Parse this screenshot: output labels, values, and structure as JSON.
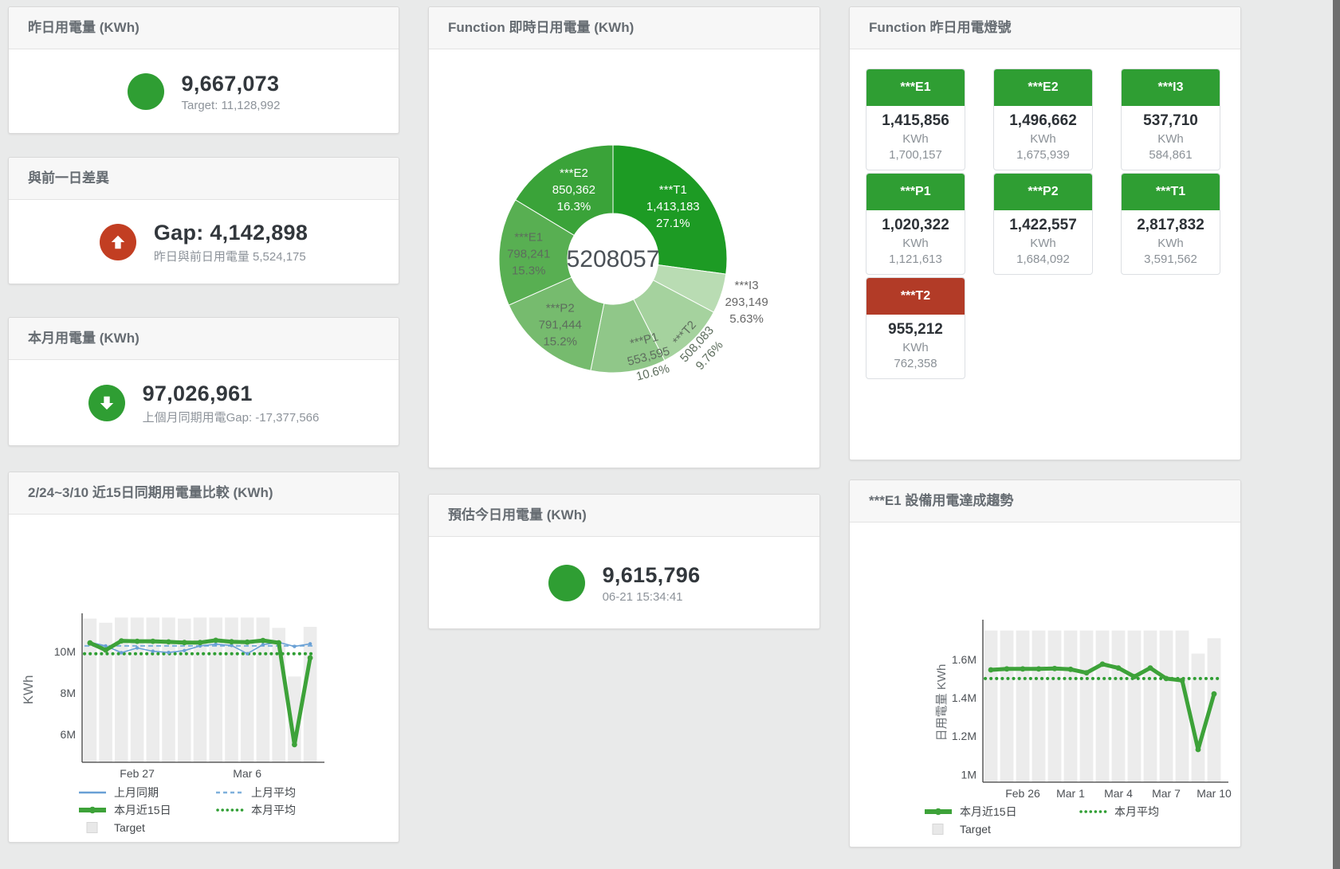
{
  "cards": {
    "yesterday": {
      "title": "昨日用電量 (KWh)",
      "value": "9,667,073",
      "subtitle": "Target: 11,128,992",
      "indicator": "circle-icon",
      "color": "#2f9e33"
    },
    "diff": {
      "title": "與前一日差異",
      "value": "Gap: 4,142,898",
      "subtitle": "昨日與前日用電量 5,524,175",
      "indicator": "arrow-up-icon",
      "color": "#c23e22"
    },
    "month": {
      "title": "本月用電量 (KWh)",
      "value": "97,026,961",
      "subtitle": "上個月同期用電Gap: -17,377,566",
      "indicator": "arrow-down-icon",
      "color": "#2f9e33"
    },
    "estimate": {
      "title": "預估今日用電量 (KWh)",
      "value": "9,615,796",
      "subtitle": "06-21 15:34:41",
      "indicator": "circle-icon",
      "color": "#2f9e33"
    },
    "lamp": {
      "title": "Function 昨日用電燈號",
      "unit": "KWh",
      "status_colors": {
        "green": "#2f9e33",
        "red": "#b23b27"
      },
      "tiles": [
        {
          "id": "e1",
          "label": "***E1",
          "value": "1,415,856",
          "target": "1,700,157",
          "color": "#2f9e33"
        },
        {
          "id": "e2",
          "label": "***E2",
          "value": "1,496,662",
          "target": "1,675,939",
          "color": "#2f9e33"
        },
        {
          "id": "i3",
          "label": "***I3",
          "value": "537,710",
          "target": "584,861",
          "color": "#2f9e33"
        },
        {
          "id": "p1",
          "label": "***P1",
          "value": "1,020,322",
          "target": "1,121,613",
          "color": "#2f9e33"
        },
        {
          "id": "p2",
          "label": "***P2",
          "value": "1,422,557",
          "target": "1,684,092",
          "color": "#2f9e33"
        },
        {
          "id": "t1",
          "label": "***T1",
          "value": "2,817,832",
          "target": "3,591,562",
          "color": "#2f9e33"
        },
        {
          "id": "t2",
          "label": "***T2",
          "value": "955,212",
          "target": "762,358",
          "color": "#b23b27"
        }
      ]
    }
  },
  "chart_data": [
    {
      "type": "donut",
      "id": "realtime-donut",
      "title": "Function 即時日用電量 (KWh)",
      "center_total": "5208057",
      "slices": [
        {
          "name": "***T1",
          "value": 1413183,
          "value_label": "1,413,183",
          "pct": "27.1%",
          "color": "#1d9b24",
          "label": {
            "r": 100,
            "color": "#ffffff",
            "rotate": 0
          }
        },
        {
          "name": "***I3",
          "value": 293149,
          "value_label": "293,149",
          "pct": "5.63%",
          "color": "#b9dcb3",
          "label": {
            "r": 176,
            "color": "#666666",
            "rotate": 0,
            "outside": true
          }
        },
        {
          "name": "***T2",
          "value": 508083,
          "value_label": "508,083",
          "pct": "9.76%",
          "color": "#a5d29e",
          "label": {
            "r": 150,
            "color": "#5d6d5d",
            "rotate": -48
          }
        },
        {
          "name": "***P1",
          "value": 553595,
          "value_label": "553,595",
          "pct": "10.6%",
          "color": "#90c789",
          "label": {
            "r": 130,
            "angle": 160,
            "color": "#5d6d5d",
            "rotate": -15
          }
        },
        {
          "name": "***P2",
          "value": 791444,
          "value_label": "791,444",
          "pct": "15.2%",
          "color": "#76bb6e",
          "label": {
            "r": 106,
            "color": "#5d6d5d",
            "rotate": 0
          }
        },
        {
          "name": "***E1",
          "value": 798241,
          "value_label": "798,241",
          "pct": "15.3%",
          "color": "#58af52",
          "label": {
            "r": 106,
            "color": "#5d6d5d",
            "rotate": 0
          }
        },
        {
          "name": "***E2",
          "value": 850362,
          "value_label": "850,362",
          "pct": "16.3%",
          "color": "#3aa339",
          "label": {
            "r": 100,
            "color": "#ffffff",
            "rotate": 0
          }
        }
      ]
    },
    {
      "type": "line+bar",
      "id": "compare-15day",
      "title": "2/24~3/10 近15日同期用電量比較 (KWh)",
      "ylabel": "KWh",
      "categories": [
        "2/24",
        "2/25",
        "2/26",
        "2/27",
        "2/28",
        "3/1",
        "3/2",
        "3/3",
        "3/4",
        "3/5",
        "3/6",
        "3/7",
        "3/8",
        "3/9",
        "3/10"
      ],
      "ylim": [
        4.65,
        11.7
      ],
      "y_ticks": [
        {
          "v": 6,
          "label": "6M"
        },
        {
          "v": 8,
          "label": "8M"
        },
        {
          "v": 10,
          "label": "10M"
        }
      ],
      "x_ticks": [
        {
          "i": 3,
          "label": "Feb 27"
        },
        {
          "i": 10,
          "label": "Mar 6"
        }
      ],
      "bars": {
        "name": "Target",
        "color": "#ececec",
        "values": [
          11.6,
          11.4,
          11.65,
          11.65,
          11.65,
          11.65,
          11.6,
          11.65,
          11.65,
          11.65,
          11.65,
          11.65,
          11.15,
          8.8,
          11.2
        ]
      },
      "series": [
        {
          "name": "上月平均",
          "constant": 10.28,
          "color": "#7fb0dc",
          "width": 2,
          "style": "dashed"
        },
        {
          "name": "本月平均",
          "constant": 9.9,
          "color": "#2f9e33",
          "width": 4,
          "style": "dotted"
        },
        {
          "name": "上月同期",
          "color": "#69a0d5",
          "width": 1.6,
          "style": "solid",
          "markers": true,
          "values": [
            10.45,
            10.28,
            9.95,
            10.18,
            10.02,
            9.96,
            10.05,
            10.28,
            10.36,
            10.3,
            9.9,
            10.34,
            10.45,
            10.25,
            10.38
          ]
        },
        {
          "name": "本月近15日",
          "color": "#3da239",
          "width": 5,
          "style": "solid",
          "markers": true,
          "values": [
            10.42,
            10.08,
            10.52,
            10.5,
            10.5,
            10.47,
            10.44,
            10.44,
            10.55,
            10.48,
            10.46,
            10.54,
            10.43,
            5.5,
            9.7
          ]
        }
      ],
      "legend": [
        [
          {
            "label": "上月同期",
            "swatch": "line",
            "color": "#69a0d5"
          },
          {
            "label": "上月平均",
            "swatch": "dash",
            "color": "#7fb0dc"
          }
        ],
        [
          {
            "label": "本月近15日",
            "swatch": "thickline",
            "color": "#3da239"
          },
          {
            "label": "本月平均",
            "swatch": "dots",
            "color": "#2f9e33"
          }
        ],
        [
          {
            "label": "Target",
            "swatch": "square",
            "color": "#e8e8e8"
          }
        ]
      ]
    },
    {
      "type": "line+bar",
      "id": "e1-trend",
      "title": "***E1 設備用電達成趨勢",
      "ylabel": "日用電量 KWh",
      "categories": [
        "2/24",
        "2/25",
        "2/26",
        "2/27",
        "2/28",
        "3/1",
        "3/2",
        "3/3",
        "3/4",
        "3/5",
        "3/6",
        "3/7",
        "3/8",
        "3/9",
        "3/10"
      ],
      "ylim": [
        0.96,
        1.79
      ],
      "y_ticks": [
        {
          "v": 1,
          "label": "1M"
        },
        {
          "v": 1.2,
          "label": "1.2M"
        },
        {
          "v": 1.4,
          "label": "1.4M"
        },
        {
          "v": 1.6,
          "label": "1.6M"
        }
      ],
      "x_ticks": [
        {
          "i": 2,
          "label": "Feb 26"
        },
        {
          "i": 5,
          "label": "Mar 1"
        },
        {
          "i": 8,
          "label": "Mar 4"
        },
        {
          "i": 11,
          "label": "Mar 7"
        },
        {
          "i": 14,
          "label": "Mar 10"
        }
      ],
      "bars": {
        "name": "Target",
        "color": "#ececec",
        "values": [
          1.75,
          1.75,
          1.75,
          1.75,
          1.75,
          1.75,
          1.75,
          1.75,
          1.75,
          1.75,
          1.75,
          1.75,
          1.75,
          1.63,
          1.71
        ]
      },
      "series": [
        {
          "name": "本月平均",
          "constant": 1.5,
          "color": "#2f9e33",
          "width": 4,
          "style": "dotted"
        },
        {
          "name": "本月近15日",
          "color": "#3da239",
          "width": 5,
          "style": "solid",
          "markers": true,
          "values": [
            1.545,
            1.55,
            1.55,
            1.55,
            1.552,
            1.548,
            1.53,
            1.575,
            1.555,
            1.51,
            1.555,
            1.5,
            1.49,
            1.13,
            1.42
          ]
        }
      ],
      "legend": [
        [
          {
            "label": "本月近15日",
            "swatch": "thickline",
            "color": "#3da239"
          },
          {
            "label": "本月平均",
            "swatch": "dots",
            "color": "#2f9e33"
          }
        ],
        [
          {
            "label": "Target",
            "swatch": "square",
            "color": "#e8e8e8"
          }
        ]
      ]
    }
  ]
}
